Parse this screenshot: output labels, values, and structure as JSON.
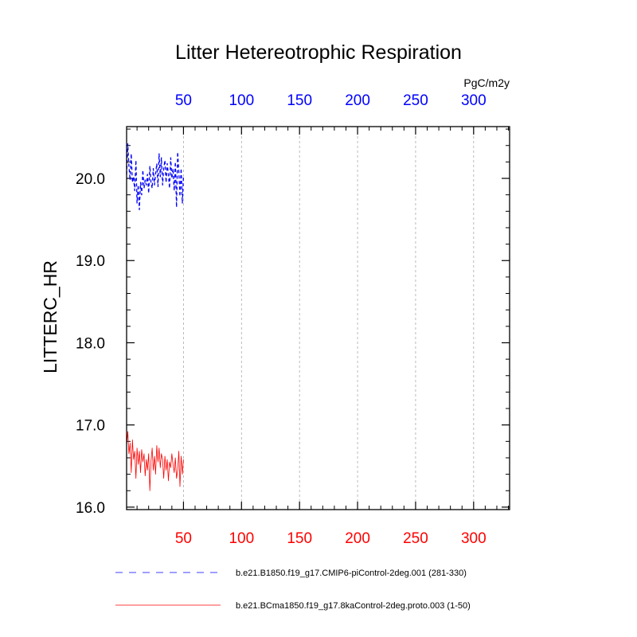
{
  "chart_data": {
    "type": "line",
    "title": "Litter Hetereotrophic Respiration",
    "units": "PgC/m2y",
    "ylabel": "LITTERC_HR",
    "xlabel": "",
    "xlim": [
      1,
      331
    ],
    "ylim": [
      15.97,
      20.63
    ],
    "bottom_x_ticks": [
      "50",
      "100",
      "150",
      "200",
      "250",
      "300"
    ],
    "bottom_x_tick_values": [
      50,
      100,
      150,
      200,
      250,
      300
    ],
    "top_x_ticks": [
      "50",
      "100",
      "150",
      "200",
      "250",
      "300"
    ],
    "top_x_tick_values": [
      50,
      100,
      150,
      200,
      250,
      300
    ],
    "y_ticks": [
      "16.0",
      "17.0",
      "18.0",
      "19.0",
      "20.0"
    ],
    "y_tick_values": [
      16.0,
      17.0,
      18.0,
      19.0,
      20.0
    ],
    "grid": "vertical dashed at x ticks",
    "colors": {
      "bottom_axis_labels": "#ff0000",
      "top_axis_labels": "#0000ff"
    },
    "series": [
      {
        "name": "b.e21.B1850.f19_g17.CMIP6-piControl-2deg.001 (281-330)",
        "axis": "top",
        "color": "#0000ff",
        "dash": "dashed",
        "x": [
          1,
          2,
          3,
          4,
          5,
          6,
          7,
          8,
          9,
          10,
          11,
          12,
          13,
          14,
          15,
          16,
          17,
          18,
          19,
          20,
          21,
          22,
          23,
          24,
          25,
          26,
          27,
          28,
          29,
          30,
          31,
          32,
          33,
          34,
          35,
          36,
          37,
          38,
          39,
          40,
          41,
          42,
          43,
          44,
          45,
          46,
          47,
          48,
          49,
          50
        ],
        "values": [
          20.05,
          20.42,
          20.15,
          19.98,
          20.3,
          19.95,
          20.02,
          19.85,
          20.22,
          19.7,
          19.92,
          19.62,
          19.95,
          19.8,
          20.1,
          19.88,
          19.98,
          19.92,
          20.05,
          19.82,
          20.15,
          19.95,
          19.88,
          20.12,
          19.92,
          20.05,
          20.18,
          19.9,
          20.3,
          20.02,
          20.25,
          19.92,
          20.12,
          20.22,
          19.95,
          20.18,
          20.05,
          19.88,
          20.25,
          20.0,
          20.12,
          19.85,
          20.2,
          19.65,
          20.32,
          20.08,
          19.78,
          20.12,
          19.7,
          20.02
        ]
      },
      {
        "name": "b.e21.BCma1850.f19_g17.8kaControl-2deg.proto.003 (1-50)",
        "axis": "bottom",
        "color": "#ff0000",
        "dash": "solid",
        "x": [
          1,
          2,
          3,
          4,
          5,
          6,
          7,
          8,
          9,
          10,
          11,
          12,
          13,
          14,
          15,
          16,
          17,
          18,
          19,
          20,
          21,
          22,
          23,
          24,
          25,
          26,
          27,
          28,
          29,
          30,
          31,
          32,
          33,
          34,
          35,
          36,
          37,
          38,
          39,
          40,
          41,
          42,
          43,
          44,
          45,
          46,
          47,
          48,
          49,
          50
        ],
        "values": [
          16.75,
          16.92,
          16.65,
          16.78,
          16.42,
          16.82,
          16.58,
          16.68,
          16.35,
          16.72,
          16.52,
          16.68,
          16.42,
          16.7,
          16.55,
          16.65,
          16.38,
          16.58,
          16.45,
          16.65,
          16.2,
          16.55,
          16.72,
          16.45,
          16.62,
          16.4,
          16.75,
          16.55,
          16.72,
          16.48,
          16.65,
          16.58,
          16.35,
          16.62,
          16.45,
          16.58,
          16.32,
          16.55,
          16.48,
          16.65,
          16.52,
          16.42,
          16.6,
          16.35,
          16.45,
          16.68,
          16.25,
          16.62,
          16.4,
          16.58
        ]
      }
    ],
    "legend": {
      "placement": "bottom",
      "entries": [
        "b.e21.B1850.f19_g17.CMIP6-piControl-2deg.001 (281-330)",
        "b.e21.BCma1850.f19_g17.8kaControl-2deg.proto.003 (1-50)"
      ]
    }
  }
}
